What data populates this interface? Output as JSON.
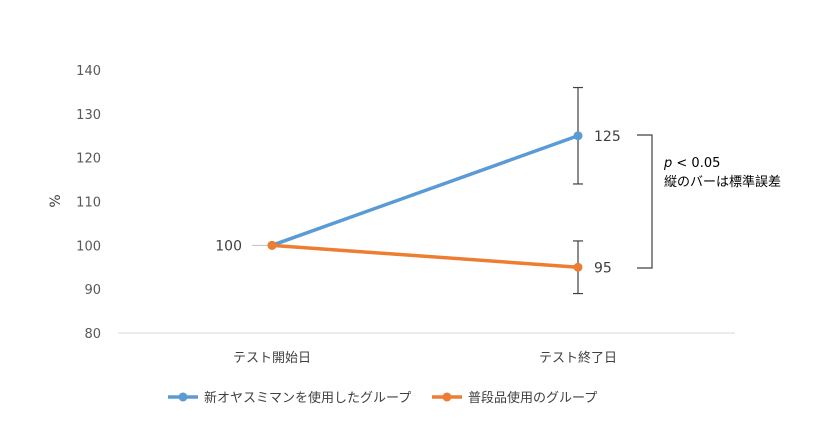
{
  "chart_data": {
    "type": "line",
    "categories": [
      "テスト開始日",
      "テスト終了日"
    ],
    "ylabel": "%",
    "ylim": [
      80,
      140
    ],
    "yticks": [
      80,
      90,
      100,
      110,
      120,
      130,
      140
    ],
    "grid": false,
    "legend_position": "bottom",
    "series": [
      {
        "name": "新オヤスミマンを使用したグループ",
        "color": "#5B9BD5",
        "values": [
          100,
          125
        ],
        "error_bar": [
          null,
          11
        ]
      },
      {
        "name": "普段品使用のグループ",
        "color": "#ED7D31",
        "values": [
          100,
          95
        ],
        "error_bar": [
          null,
          6
        ]
      }
    ],
    "data_labels": [
      "100",
      "125",
      "95"
    ],
    "annotation": {
      "p_letter": "p",
      "p_rest": " < 0.05",
      "note": "縦のバーは標準誤差"
    }
  }
}
